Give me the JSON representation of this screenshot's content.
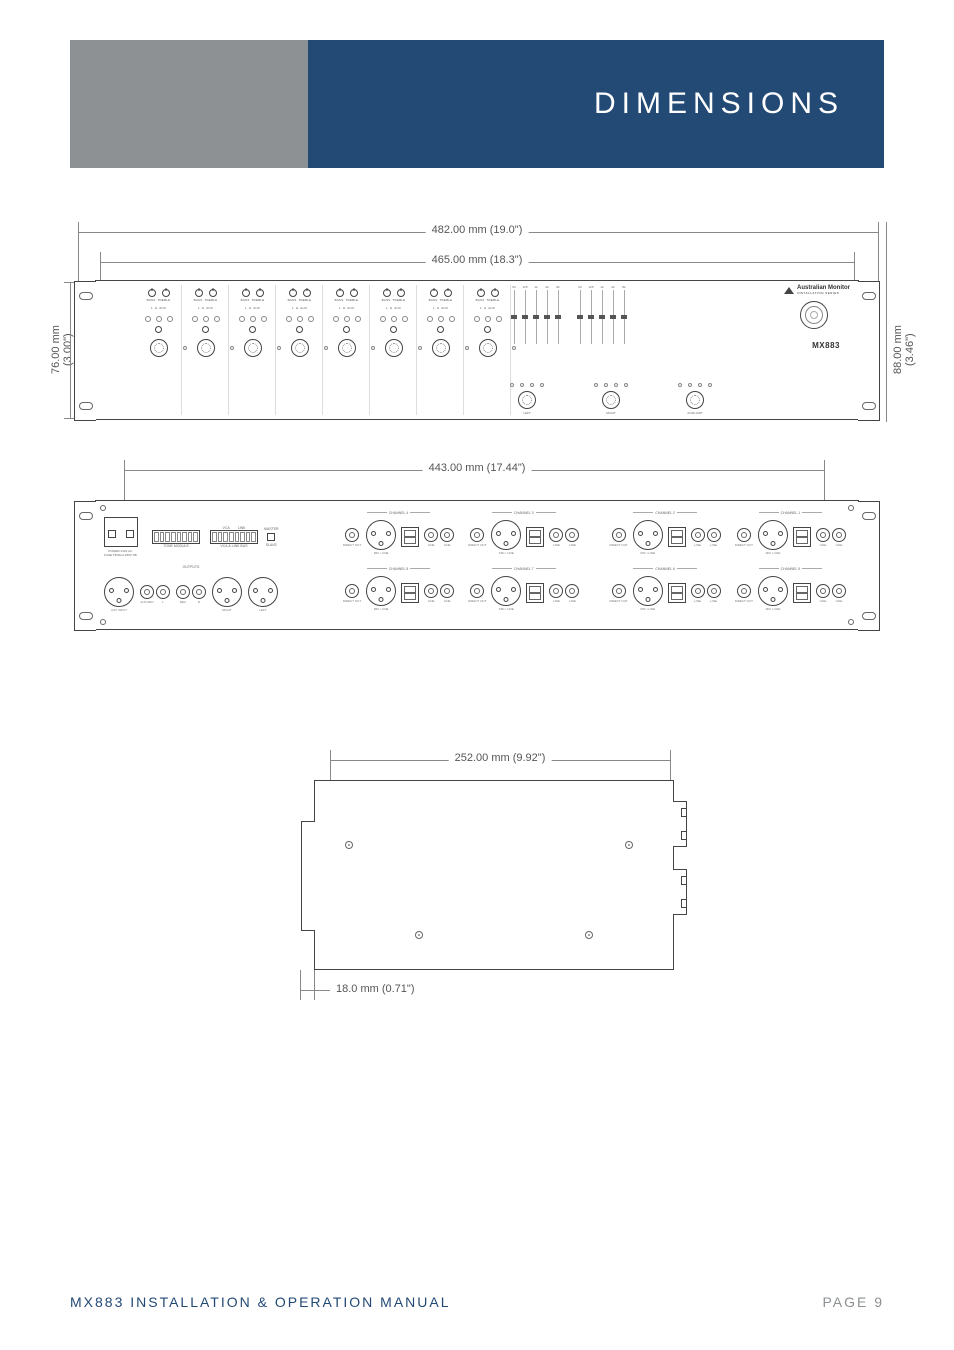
{
  "page": {
    "title": "DIMENSIONS",
    "footer_left": "MX883 INSTALLATION & OPERATION MANUAL",
    "footer_right": "PAGE 9",
    "header_gray_bg": "#8e9193",
    "header_blue_bg": "#234a75"
  },
  "dimensions": {
    "front_width": "482.00 mm (19.0\")",
    "panel_width": "465.00 mm (18.3\")",
    "height_left": "76.00 mm",
    "height_left_in": "(3.00\")",
    "height_right": "88.00 mm",
    "height_right_in": "(3.46\")",
    "rear_width": "443.00 mm (17.44\")",
    "side_depth": "252.00 mm (9.92\")",
    "side_offset": "18.0 mm (0.71\")"
  },
  "front_panel": {
    "channels": 8,
    "ch_labels": {
      "bass": "BASS",
      "treble": "TREBLE",
      "low": "L",
      "hi": "H",
      "aux": "AUX"
    },
    "eq": {
      "bands_l": [
        "63",
        "125",
        "1k",
        "2k",
        "8k"
      ],
      "bands_r": [
        "63",
        "125",
        "1k",
        "2k",
        "8k"
      ],
      "scale": [
        "+6",
        "0dB",
        "-6"
      ]
    },
    "brand": "Australian Monitor",
    "brand_sub": "INSTALLATION SERIES",
    "model": "MX883",
    "output_knobs": {
      "ticks": [
        "-40",
        "-20",
        "0",
        "+10dB"
      ],
      "left": "LEFT",
      "right": "RIGHT",
      "aux": "AUXILIARY",
      "extra_ticks": [
        "+10dB",
        "ON"
      ]
    }
  },
  "rear_panel": {
    "power_label": "POWER 240V AC\nFUSE T500mA 250V SB",
    "tone_module": "TONE MODULE",
    "vca_link": "VCA & LINK BUS",
    "vca": "VCA",
    "link": "LINK",
    "master": "MASTER",
    "outputs": "OUTPUTS",
    "slave": "SLAVE",
    "aux_input": "AUX INPUT",
    "aux_rec": "AUX REC",
    "rec": "REC",
    "right": "RIGHT",
    "left": "LEFT",
    "direct_out": "DIRECT OUT",
    "mic_line": "MIC / LINE",
    "line": "LINE",
    "channels_top": [
      "CHANNEL 4",
      "CHANNEL 3",
      "CHANNEL 2",
      "CHANNEL 1"
    ],
    "channels_bot": [
      "CHANNEL 8",
      "CHANNEL 7",
      "CHANNEL 6",
      "CHANNEL 5"
    ],
    "dip_top": [
      "1",
      "2",
      "3",
      "4",
      "5",
      "6",
      "O",
      "N"
    ],
    "l": "L",
    "r": "R"
  }
}
